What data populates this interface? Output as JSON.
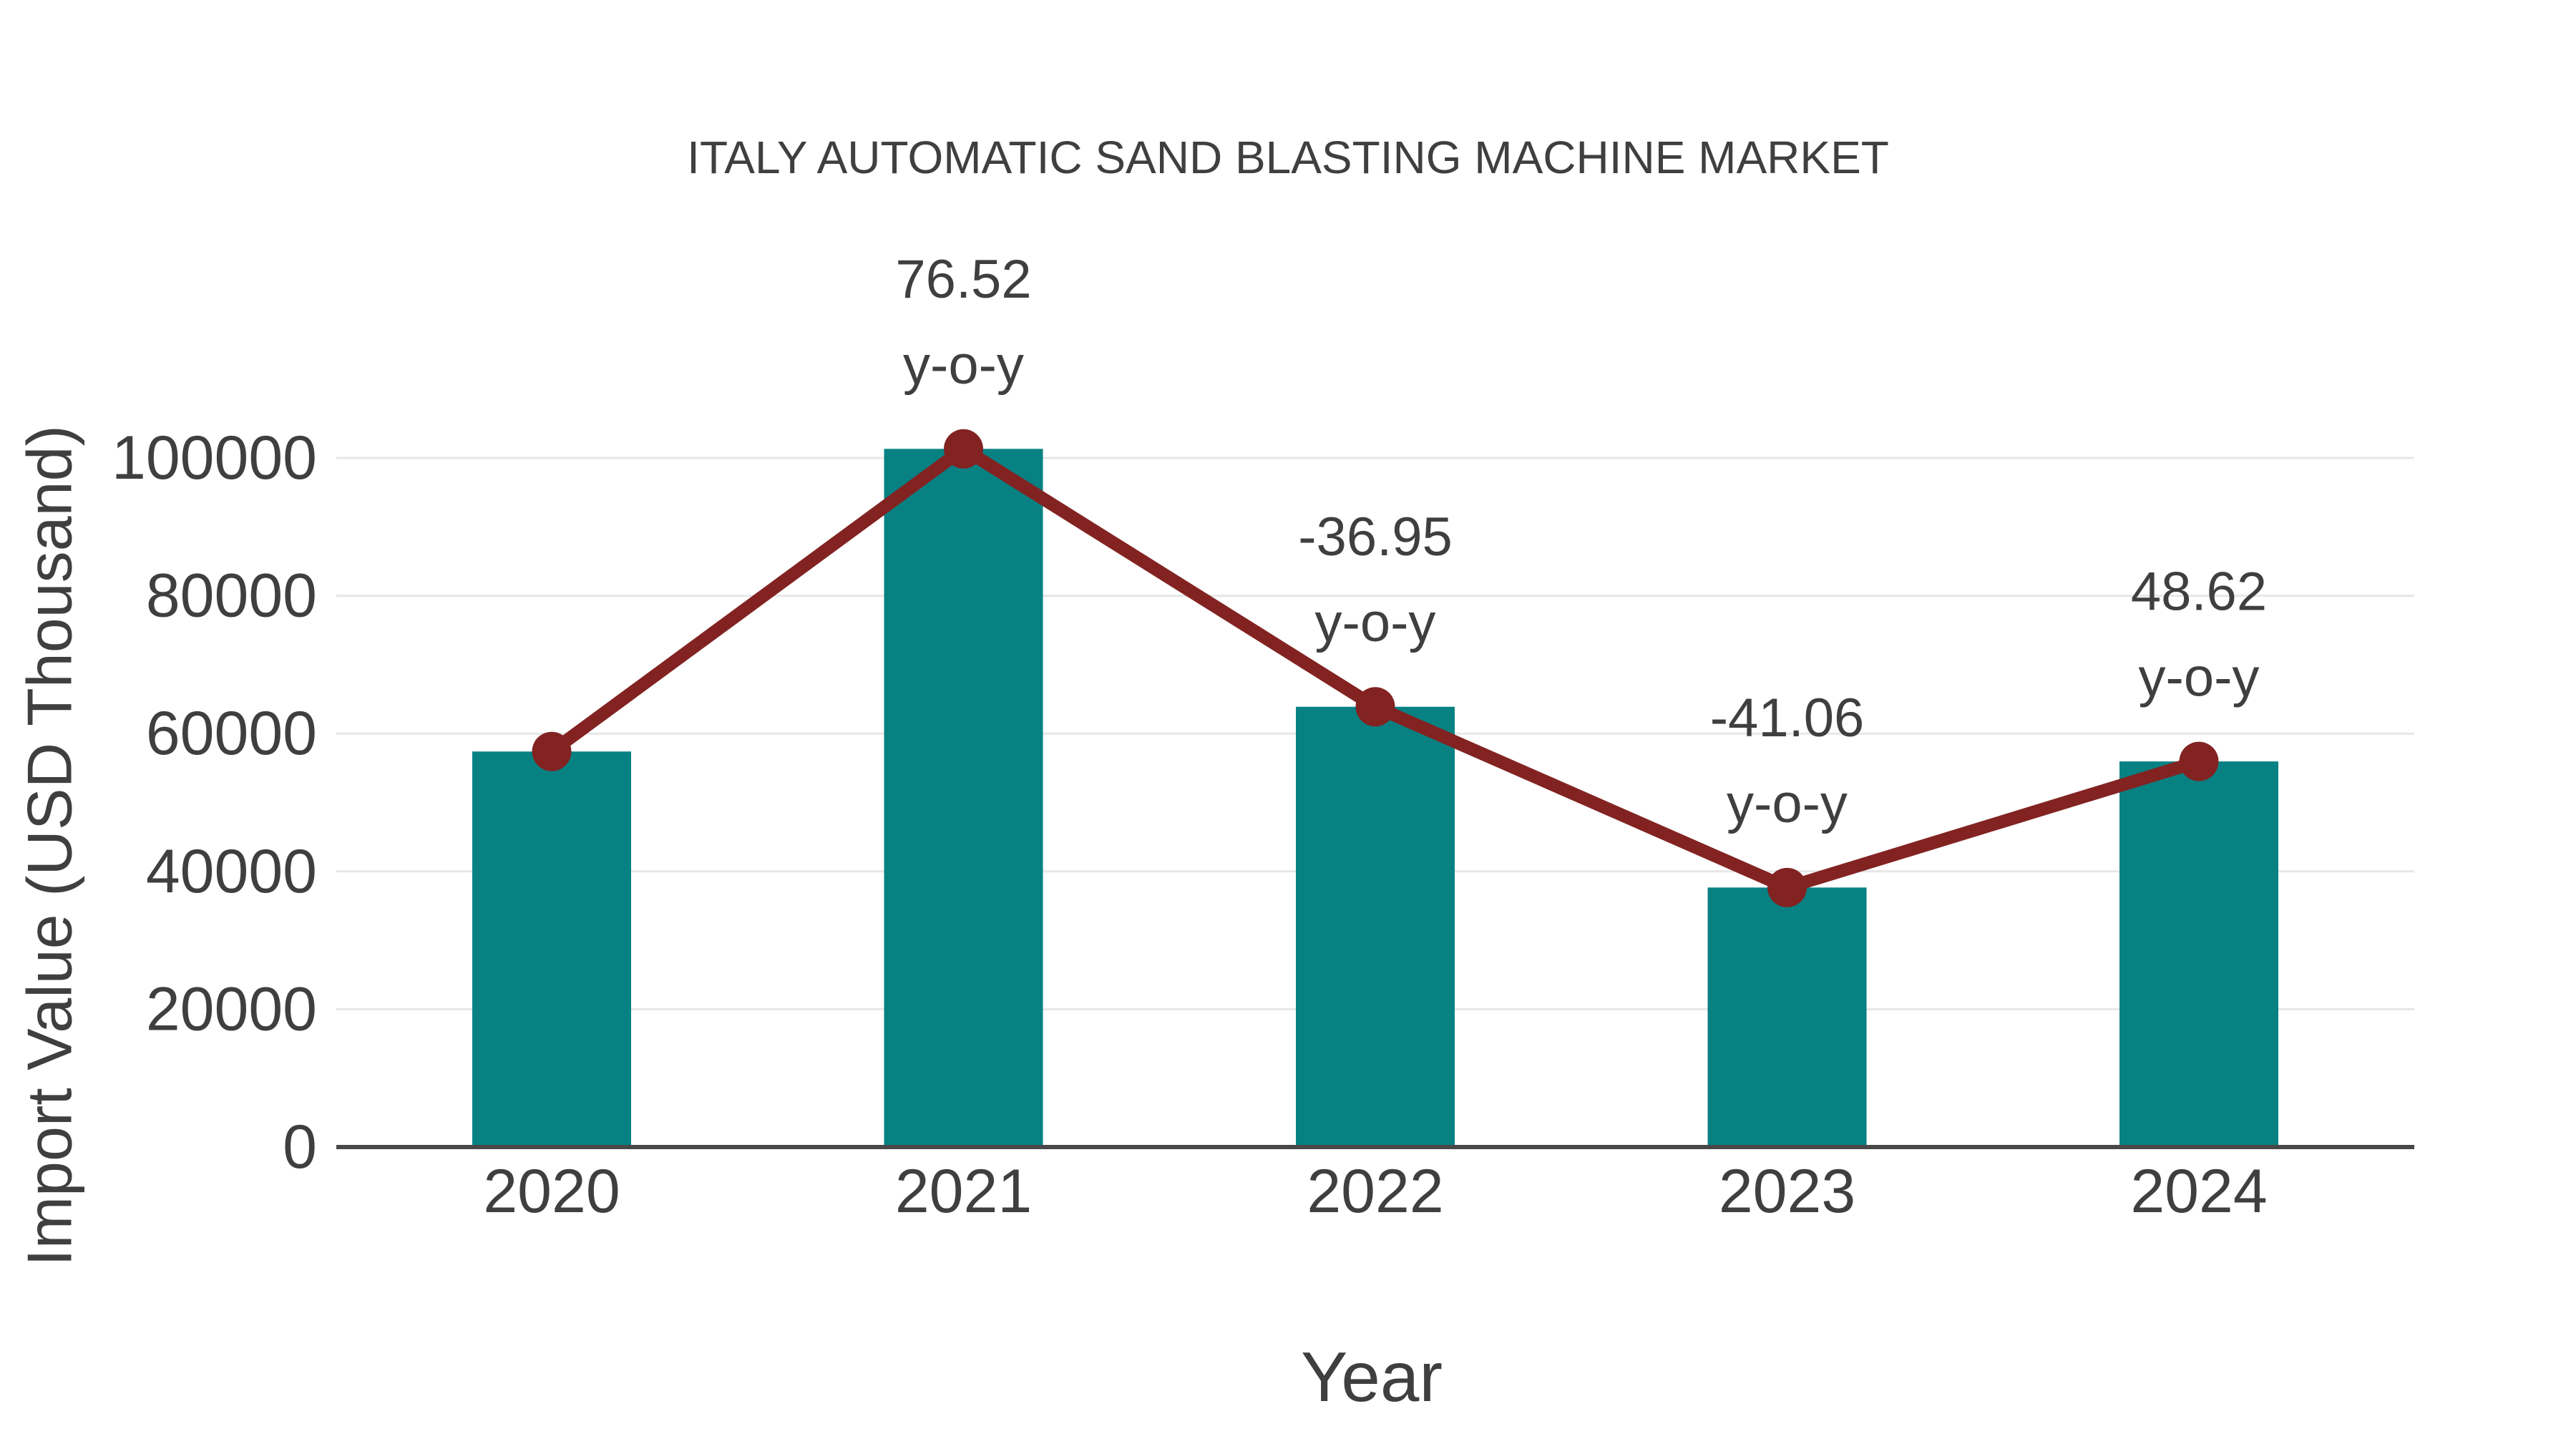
{
  "title": "ITALY AUTOMATIC SAND BLASTING MACHINE MARKET",
  "chart_data": {
    "type": "bar",
    "categories": [
      "2020",
      "2021",
      "2022",
      "2023",
      "2024"
    ],
    "series": [
      {
        "name": "Import Value",
        "type": "bar",
        "values": [
          57400,
          101320,
          63890,
          37660,
          55960
        ]
      },
      {
        "name": "y-o-y trend",
        "type": "line",
        "values": [
          57400,
          101320,
          63890,
          37660,
          55960
        ]
      }
    ],
    "annotations": [
      {
        "category": "2021",
        "value": "76.52",
        "suffix": "y-o-y"
      },
      {
        "category": "2022",
        "value": "-36.95",
        "suffix": "y-o-y"
      },
      {
        "category": "2023",
        "value": "-41.06",
        "suffix": "y-o-y"
      },
      {
        "category": "2024",
        "value": "48.62",
        "suffix": "y-o-y"
      }
    ],
    "title": "ITALY AUTOMATIC SAND BLASTING MACHINE MARKET",
    "xlabel": "Year",
    "ylabel": "Import Value (USD Thousand)",
    "ylim": [
      0,
      100000
    ],
    "yticks": [
      0,
      20000,
      40000,
      60000,
      80000,
      100000
    ],
    "grid": true,
    "legend_position": "none"
  },
  "style": {
    "bar_color": "#088183",
    "line_color": "#822322",
    "marker_color": "#822322",
    "grid_color": "#e7e7e7",
    "axis_line_color": "#484848",
    "text_color": "#3f3f3f",
    "background": "#ffffff"
  }
}
